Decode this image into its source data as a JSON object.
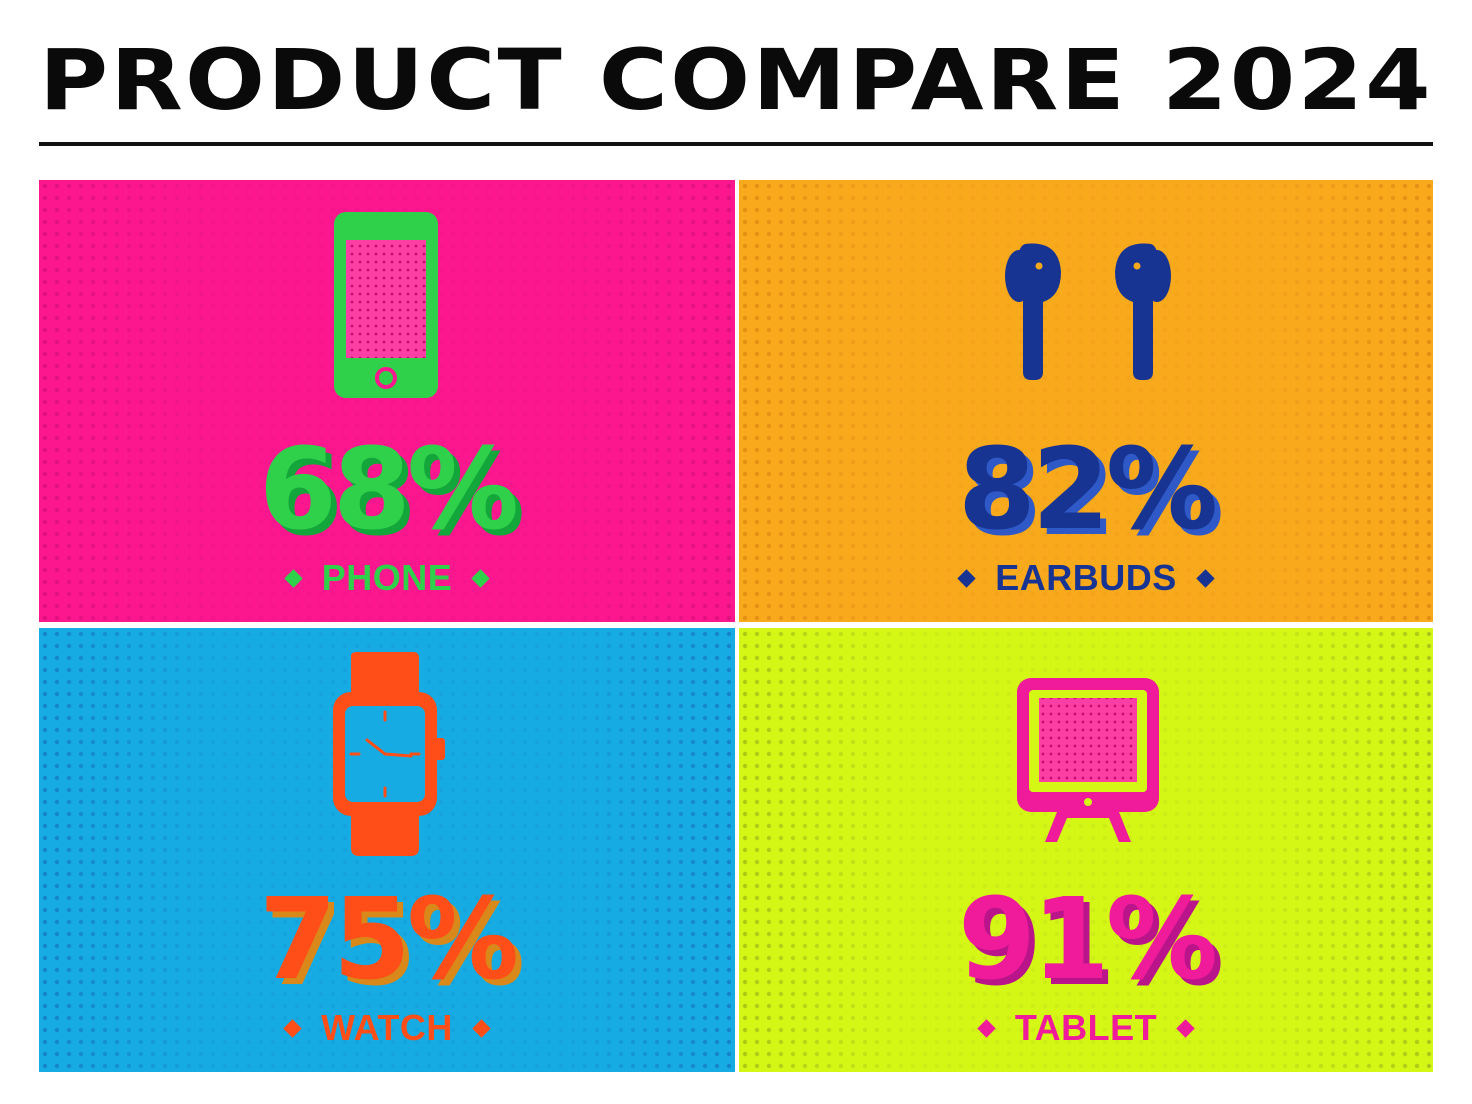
{
  "title": "PRODUCT COMPARE 2024",
  "panels": [
    {
      "label": "PHONE",
      "percent": "68%",
      "value": 68,
      "icon": "smartphone-icon",
      "bg_color": "#fc178f",
      "accent_color": "#2fd14a",
      "shadow_color": "#13a63a"
    },
    {
      "label": "EARBUDS",
      "percent": "82%",
      "value": 82,
      "icon": "earbuds-icon",
      "bg_color": "#f9a91c",
      "accent_color": "#183492",
      "shadow_color": "#2f59c6"
    },
    {
      "label": "WATCH",
      "percent": "75%",
      "value": 75,
      "icon": "smartwatch-icon",
      "bg_color": "#16ace3",
      "accent_color": "#ff4e17",
      "shadow_color": "#d9881a"
    },
    {
      "label": "TABLET",
      "percent": "91%",
      "value": 91,
      "icon": "tablet-icon",
      "bg_color": "#d4f716",
      "accent_color": "#ef1b9a",
      "shadow_color": "#b9148a"
    }
  ]
}
